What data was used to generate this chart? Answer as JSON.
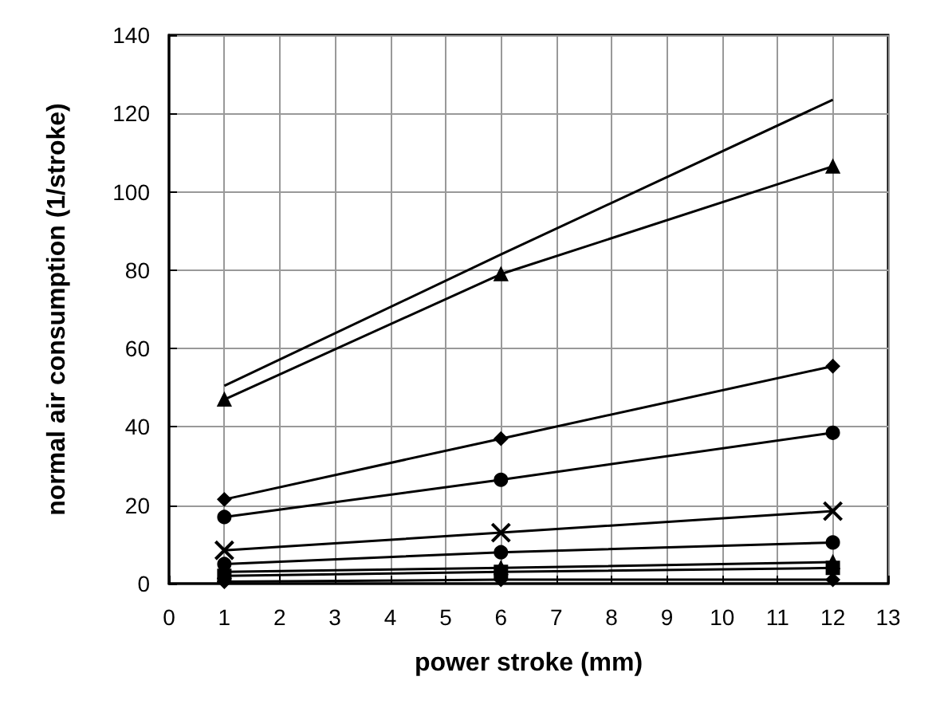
{
  "chart_data": {
    "type": "line",
    "xlabel": "power stroke (mm)",
    "ylabel": "normal air consumption (1/stroke)",
    "x": [
      1,
      6,
      12
    ],
    "series": [
      {
        "color": "#000000",
        "marker": "none",
        "values": [
          50.5,
          84,
          123.5
        ]
      },
      {
        "color": "#000000",
        "marker": "triangle",
        "values": [
          47,
          79,
          106.5
        ]
      },
      {
        "color": "#000000",
        "marker": "diamond",
        "values": [
          21.5,
          37,
          55.5
        ]
      },
      {
        "color": "#000000",
        "marker": "circle",
        "values": [
          17,
          26.5,
          38.5
        ]
      },
      {
        "color": "#000000",
        "marker": "cross",
        "values": [
          8.5,
          13,
          18.5
        ]
      },
      {
        "color": "#000000",
        "marker": "circle",
        "values": [
          5,
          8,
          10.5
        ]
      },
      {
        "color": "#000000",
        "marker": "triangle",
        "values": [
          3,
          4,
          5.5
        ]
      },
      {
        "color": "#000000",
        "marker": "square",
        "values": [
          2,
          3,
          4
        ]
      },
      {
        "color": "#000000",
        "marker": "diamond",
        "values": [
          0.5,
          1,
          1
        ]
      }
    ],
    "xlim": [
      0,
      13
    ],
    "xticks": [
      0,
      1,
      2,
      3,
      4,
      5,
      6,
      7,
      8,
      9,
      10,
      11,
      12,
      13
    ],
    "ylim": [
      0,
      140
    ],
    "yticks": [
      0,
      20,
      40,
      60,
      80,
      100,
      120,
      140
    ],
    "grid": true,
    "line_style": "solid"
  }
}
